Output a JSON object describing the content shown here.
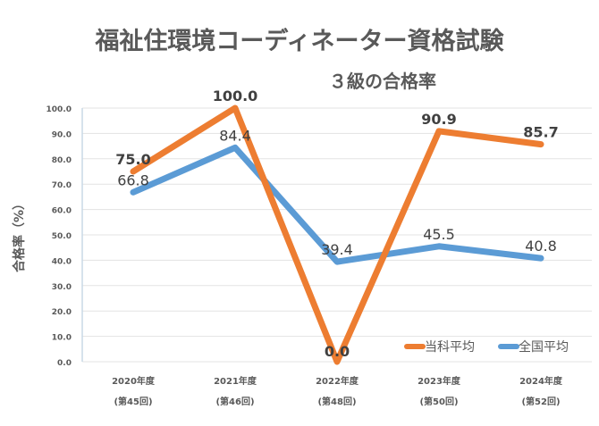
{
  "chart_data": {
    "type": "line",
    "title": "福祉住環境コーディネーター資格試験",
    "subtitle": "３級の合格率",
    "ylabel": "合格率（%）",
    "xlabel": "",
    "ylim": [
      0,
      100
    ],
    "yticks": [
      "0.0",
      "10.0",
      "20.0",
      "30.0",
      "40.0",
      "50.0",
      "60.0",
      "70.0",
      "80.0",
      "90.0",
      "100.0"
    ],
    "categories": [
      {
        "year": "2020年度",
        "round": "(第45回)"
      },
      {
        "year": "2021年度",
        "round": "(第46回)"
      },
      {
        "year": "2022年度",
        "round": "(第48回)"
      },
      {
        "year": "2023年度",
        "round": "(第50回)"
      },
      {
        "year": "2024年度",
        "round": "(第52回)"
      }
    ],
    "series": [
      {
        "name": "当科平均",
        "color": "#ED7D31",
        "values": [
          75.0,
          100.0,
          0.0,
          90.9,
          85.7
        ],
        "labels": [
          "75.0",
          "100.0",
          "0.0",
          "90.9",
          "85.7"
        ],
        "bold": true
      },
      {
        "name": "全国平均",
        "color": "#5B9BD5",
        "values": [
          66.8,
          84.4,
          39.4,
          45.5,
          40.8
        ],
        "labels": [
          "66.8",
          "84.4",
          "39.4",
          "45.5",
          "40.8"
        ],
        "bold": false
      }
    ],
    "grid": true,
    "legend": "bottom-right"
  }
}
